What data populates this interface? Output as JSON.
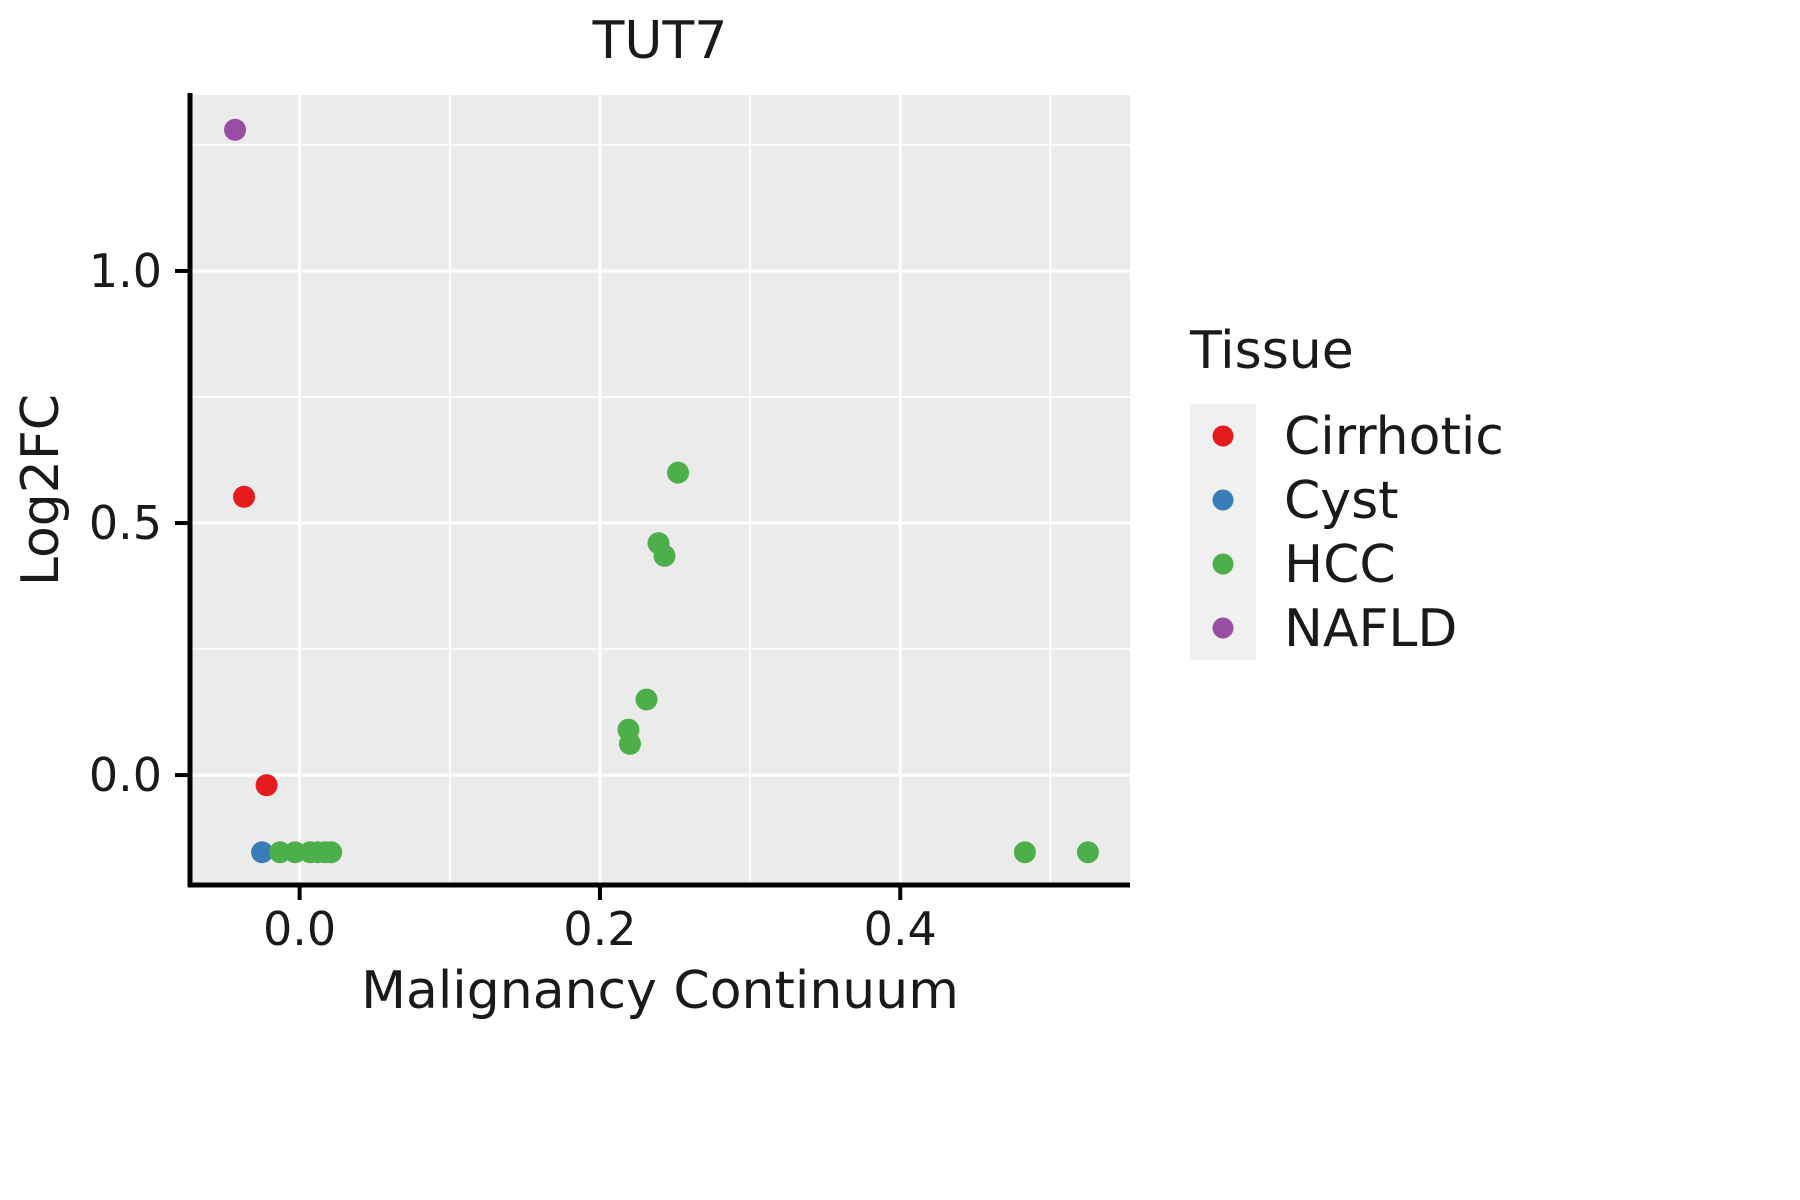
{
  "chart_data": {
    "type": "scatter",
    "title": "TUT7",
    "xlabel": "Malignancy Continuum",
    "ylabel": "Log2FC",
    "xlim": [
      -0.073,
      0.553
    ],
    "ylim": [
      -0.218,
      1.349
    ],
    "x_major_ticks": [
      0.0,
      0.2,
      0.4
    ],
    "x_tick_labels": [
      "0.0",
      "0.2",
      "0.4"
    ],
    "x_minor_gridlines": [
      0.1,
      0.3,
      0.5
    ],
    "y_major_ticks": [
      0.0,
      0.5,
      1.0
    ],
    "y_tick_labels": [
      "0.0",
      "0.5",
      "1.0"
    ],
    "y_minor_gridlines": [
      0.25,
      0.75,
      1.25
    ],
    "grid": true,
    "panel_background": "#EBEBEB",
    "gridline_color": "#FFFFFF",
    "point_radius": 11,
    "series": [
      {
        "name": "Cirrhotic",
        "color": "#E41A1C",
        "points": [
          {
            "x": -0.037,
            "y": 0.552
          },
          {
            "x": -0.022,
            "y": -0.02
          }
        ]
      },
      {
        "name": "Cyst",
        "color": "#377EB8",
        "points": [
          {
            "x": -0.025,
            "y": -0.153
          }
        ]
      },
      {
        "name": "HCC",
        "color": "#4DAF4A",
        "points": [
          {
            "x": -0.013,
            "y": -0.153
          },
          {
            "x": -0.003,
            "y": -0.153
          },
          {
            "x": 0.007,
            "y": -0.153
          },
          {
            "x": 0.012,
            "y": -0.153
          },
          {
            "x": 0.017,
            "y": -0.153
          },
          {
            "x": 0.021,
            "y": -0.153
          },
          {
            "x": 0.252,
            "y": 0.6
          },
          {
            "x": 0.239,
            "y": 0.46
          },
          {
            "x": 0.243,
            "y": 0.435
          },
          {
            "x": 0.231,
            "y": 0.15
          },
          {
            "x": 0.219,
            "y": 0.09
          },
          {
            "x": 0.22,
            "y": 0.062
          },
          {
            "x": 0.483,
            "y": -0.153
          },
          {
            "x": 0.525,
            "y": -0.153
          }
        ]
      },
      {
        "name": "NAFLD",
        "color": "#984EA3",
        "points": [
          {
            "x": -0.043,
            "y": 1.28
          }
        ]
      }
    ],
    "legend": {
      "title": "Tissue",
      "position": "right",
      "key_fill": "#F0F0F0",
      "items": [
        {
          "label": "Cirrhotic",
          "color": "#E41A1C"
        },
        {
          "label": "Cyst",
          "color": "#377EB8"
        },
        {
          "label": "HCC",
          "color": "#4DAF4A"
        },
        {
          "label": "NAFLD",
          "color": "#984EA3"
        }
      ]
    }
  }
}
